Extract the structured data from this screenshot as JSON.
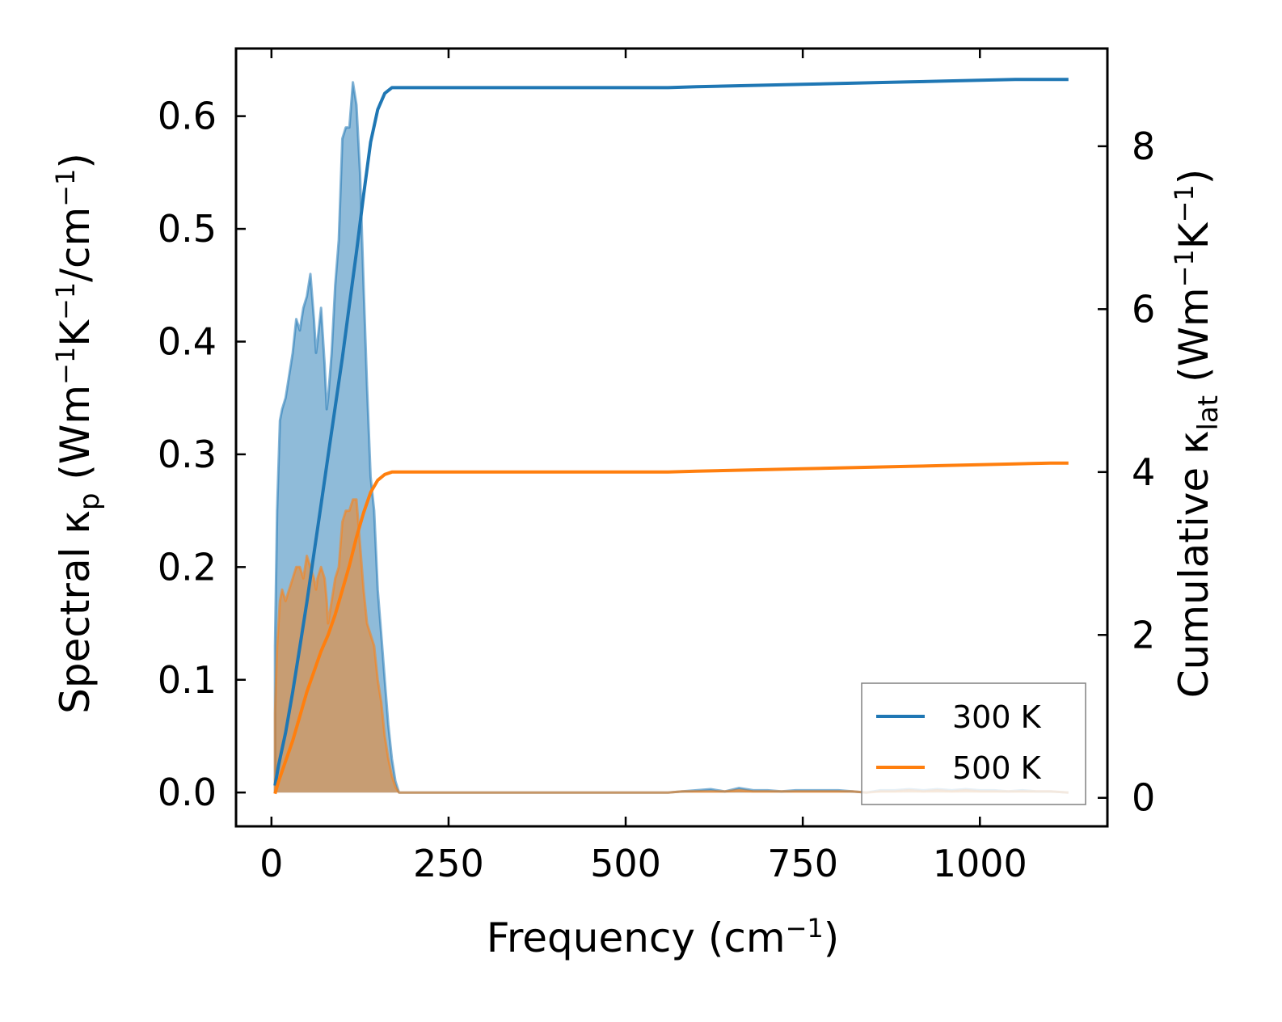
{
  "chart_data": {
    "type": "line",
    "title": "",
    "xlabel": {
      "main": "Frequency (cm",
      "sup": "−1",
      "tail": ")"
    },
    "ylabel_left": {
      "p1": "Spectral κ",
      "sub1": "p",
      "p2": " (Wm",
      "sup1": "−1",
      "p3": "K",
      "sup2": "−1",
      "p4": "/cm",
      "sup3": "−1",
      "p5": ")"
    },
    "ylabel_right": {
      "p1": "Cumulative κ",
      "sub1": "lat",
      "p2": " (Wm",
      "sup1": "−1",
      "p3": "K",
      "sup2": "−1",
      "p4": ")"
    },
    "xlim": [
      -50,
      1180
    ],
    "ylim_left": [
      -0.03,
      0.66
    ],
    "ylim_right": [
      -0.35,
      9.2
    ],
    "x_ticks": [
      0,
      250,
      500,
      750,
      1000
    ],
    "x_tick_labels": [
      "0",
      "250",
      "500",
      "750",
      "1000"
    ],
    "y_left_ticks": [
      0.0,
      0.1,
      0.2,
      0.3,
      0.4,
      0.5,
      0.6
    ],
    "y_left_tick_labels": [
      "0.0",
      "0.1",
      "0.2",
      "0.3",
      "0.4",
      "0.5",
      "0.6"
    ],
    "y_right_ticks": [
      0,
      2,
      4,
      6,
      8
    ],
    "y_right_tick_labels": [
      "0",
      "2",
      "4",
      "6",
      "8"
    ],
    "legend": {
      "position": "lower-right",
      "entries": [
        "300 K",
        "500 K"
      ]
    },
    "series": [
      {
        "name": "300 K",
        "color": "#1f77b4",
        "spectral": {
          "x": [
            5,
            5,
            8,
            12,
            15,
            20,
            25,
            30,
            35,
            40,
            45,
            50,
            55,
            60,
            63,
            65,
            70,
            75,
            78,
            80,
            85,
            90,
            95,
            100,
            105,
            110,
            115,
            120,
            125,
            130,
            135,
            140,
            145,
            150,
            155,
            160,
            165,
            170,
            175,
            180,
            185,
            200,
            300,
            400,
            500,
            560,
            580,
            600,
            620,
            640,
            660,
            680,
            700,
            720,
            740,
            760,
            780,
            800,
            820,
            840,
            860,
            880,
            900,
            920,
            940,
            960,
            980,
            1000,
            1020,
            1040,
            1060,
            1080,
            1100,
            1125
          ],
          "y": [
            0.0,
            0.13,
            0.25,
            0.33,
            0.34,
            0.35,
            0.37,
            0.39,
            0.42,
            0.41,
            0.43,
            0.44,
            0.46,
            0.42,
            0.39,
            0.4,
            0.43,
            0.38,
            0.34,
            0.35,
            0.39,
            0.45,
            0.49,
            0.58,
            0.59,
            0.59,
            0.63,
            0.61,
            0.55,
            0.45,
            0.36,
            0.28,
            0.25,
            0.18,
            0.14,
            0.1,
            0.06,
            0.03,
            0.01,
            0.0,
            0.0,
            0.0,
            0.0,
            0.0,
            0.0,
            0.0,
            0.001,
            0.002,
            0.003,
            0.001,
            0.004,
            0.002,
            0.002,
            0.001,
            0.002,
            0.002,
            0.002,
            0.002,
            0.001,
            0.0,
            0.002,
            0.002,
            0.003,
            0.002,
            0.003,
            0.002,
            0.003,
            0.002,
            0.002,
            0.001,
            0.002,
            0.001,
            0.001,
            0.0
          ]
        },
        "cumulative": {
          "x": [
            5,
            10,
            20,
            30,
            40,
            50,
            60,
            70,
            80,
            90,
            100,
            110,
            120,
            130,
            140,
            150,
            160,
            170,
            180,
            200,
            300,
            400,
            500,
            560,
            600,
            650,
            700,
            750,
            800,
            850,
            900,
            950,
            1000,
            1050,
            1100,
            1125
          ],
          "y": [
            0.15,
            0.4,
            0.8,
            1.3,
            1.85,
            2.4,
            3.0,
            3.6,
            4.2,
            4.8,
            5.4,
            6.05,
            6.7,
            7.4,
            8.05,
            8.45,
            8.65,
            8.72,
            8.72,
            8.72,
            8.72,
            8.72,
            8.72,
            8.72,
            8.73,
            8.74,
            8.75,
            8.76,
            8.77,
            8.78,
            8.79,
            8.8,
            8.81,
            8.82,
            8.82,
            8.82
          ]
        }
      },
      {
        "name": "500 K",
        "color": "#ff7f0e",
        "spectral": {
          "x": [
            5,
            5,
            8,
            12,
            15,
            20,
            25,
            30,
            35,
            40,
            45,
            50,
            55,
            60,
            63,
            65,
            70,
            75,
            78,
            80,
            85,
            90,
            95,
            100,
            105,
            110,
            115,
            120,
            125,
            130,
            135,
            140,
            145,
            150,
            155,
            160,
            165,
            170,
            175,
            180,
            185,
            200,
            300,
            400,
            500,
            560,
            580,
            600,
            620,
            640,
            660,
            680,
            700,
            720,
            740,
            760,
            780,
            800,
            820,
            840,
            860,
            880,
            900,
            920,
            940,
            960,
            980,
            1000,
            1020,
            1040,
            1060,
            1080,
            1100,
            1125
          ],
          "y": [
            0.0,
            0.07,
            0.13,
            0.17,
            0.18,
            0.17,
            0.18,
            0.19,
            0.2,
            0.2,
            0.19,
            0.21,
            0.2,
            0.19,
            0.18,
            0.19,
            0.2,
            0.19,
            0.17,
            0.15,
            0.17,
            0.19,
            0.2,
            0.24,
            0.25,
            0.25,
            0.26,
            0.26,
            0.22,
            0.18,
            0.15,
            0.14,
            0.13,
            0.1,
            0.08,
            0.05,
            0.03,
            0.015,
            0.005,
            0.0,
            0.0,
            0.0,
            0.0,
            0.0,
            0.0,
            0.0,
            0.001,
            0.001,
            0.001,
            0.001,
            0.002,
            0.001,
            0.001,
            0.001,
            0.001,
            0.001,
            0.001,
            0.001,
            0.001,
            0.0,
            0.001,
            0.001,
            0.002,
            0.001,
            0.002,
            0.001,
            0.002,
            0.001,
            0.001,
            0.001,
            0.001,
            0.001,
            0.001,
            0.0
          ]
        },
        "cumulative": {
          "x": [
            5,
            10,
            20,
            30,
            40,
            50,
            60,
            70,
            80,
            90,
            100,
            110,
            120,
            130,
            140,
            150,
            160,
            170,
            180,
            200,
            300,
            400,
            500,
            560,
            600,
            650,
            700,
            750,
            800,
            850,
            900,
            950,
            1000,
            1050,
            1100,
            1125
          ],
          "y": [
            0.05,
            0.2,
            0.45,
            0.7,
            1.0,
            1.3,
            1.55,
            1.8,
            2.0,
            2.25,
            2.55,
            2.85,
            3.2,
            3.5,
            3.75,
            3.9,
            3.97,
            4.0,
            4.0,
            4.0,
            4.0,
            4.0,
            4.0,
            4.0,
            4.01,
            4.02,
            4.03,
            4.04,
            4.05,
            4.06,
            4.07,
            4.08,
            4.09,
            4.1,
            4.11,
            4.11
          ]
        }
      }
    ]
  }
}
